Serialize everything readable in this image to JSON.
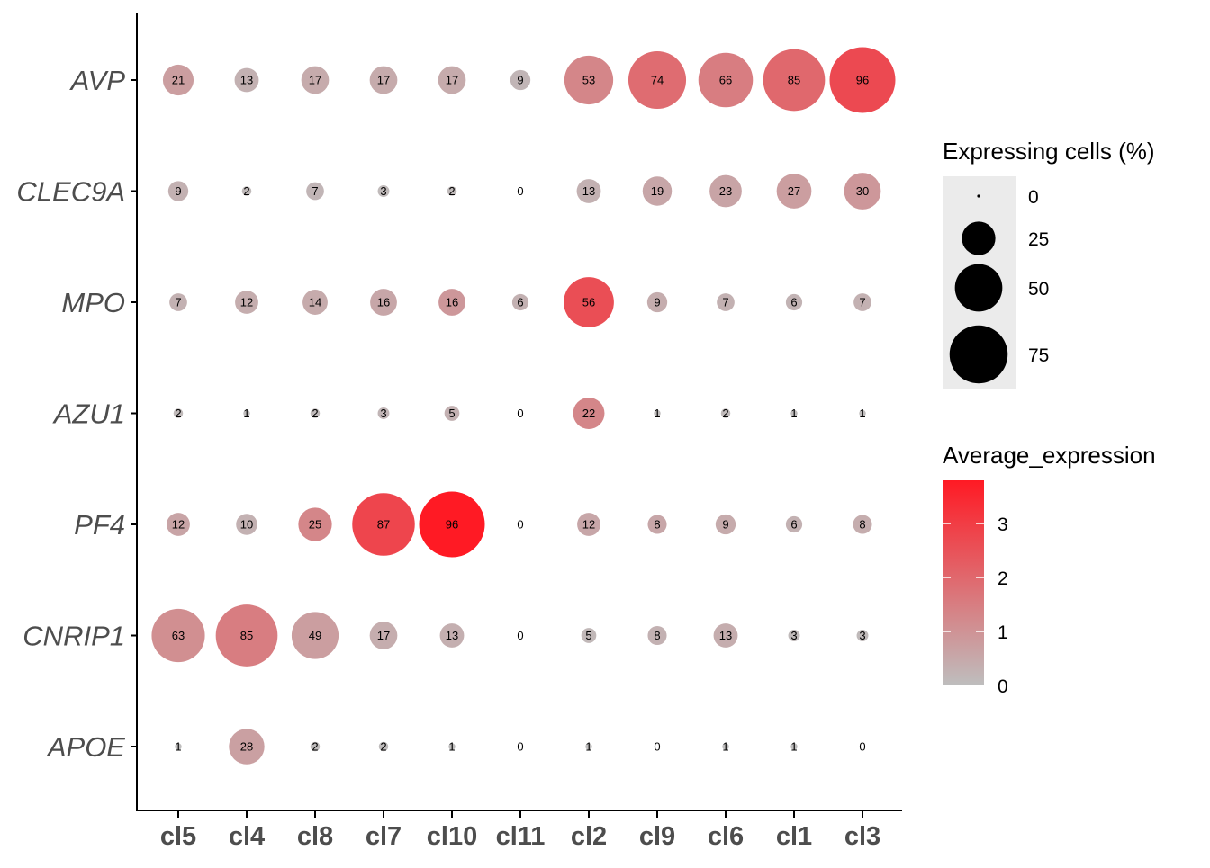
{
  "chart_data": {
    "type": "dotplot",
    "title": "",
    "xlabel": "",
    "ylabel": "",
    "categories": [
      "cl5",
      "cl4",
      "cl8",
      "cl7",
      "cl10",
      "cl11",
      "cl2",
      "cl9",
      "cl6",
      "cl1",
      "cl3"
    ],
    "genes": [
      "AVP",
      "CLEC9A",
      "MPO",
      "AZU1",
      "PF4",
      "CNRIP1",
      "APOE"
    ],
    "pct": {
      "AVP": [
        21,
        13,
        17,
        17,
        17,
        9,
        53,
        74,
        66,
        85,
        96
      ],
      "CLEC9A": [
        9,
        2,
        7,
        3,
        2,
        0,
        13,
        19,
        23,
        27,
        30
      ],
      "MPO": [
        7,
        12,
        14,
        16,
        16,
        6,
        56,
        9,
        7,
        6,
        7
      ],
      "AZU1": [
        2,
        1,
        2,
        3,
        5,
        0,
        22,
        1,
        2,
        1,
        1
      ],
      "PF4": [
        12,
        10,
        25,
        87,
        96,
        0,
        12,
        8,
        9,
        6,
        8
      ],
      "CNRIP1": [
        63,
        85,
        49,
        17,
        13,
        0,
        5,
        8,
        13,
        3,
        3
      ],
      "APOE": [
        1,
        28,
        2,
        2,
        1,
        0,
        1,
        0,
        1,
        1,
        0
      ]
    },
    "avg_expression": {
      "AVP": [
        0.75,
        0.3,
        0.45,
        0.45,
        0.45,
        0.2,
        1.3,
        1.9,
        1.5,
        2.0,
        2.7
      ],
      "CLEC9A": [
        0.3,
        0.1,
        0.2,
        0.1,
        0.1,
        0.0,
        0.3,
        0.55,
        0.6,
        0.75,
        0.9
      ],
      "MPO": [
        0.3,
        0.4,
        0.45,
        0.55,
        0.9,
        0.3,
        2.6,
        0.4,
        0.3,
        0.25,
        0.3
      ],
      "AZU1": [
        0.1,
        0.05,
        0.1,
        0.2,
        0.3,
        0.0,
        1.3,
        0.05,
        0.1,
        0.05,
        0.05
      ],
      "PF4": [
        0.6,
        0.3,
        1.3,
        2.8,
        3.8,
        0.0,
        0.55,
        0.55,
        0.45,
        0.3,
        0.4
      ],
      "CNRIP1": [
        1.1,
        1.5,
        0.75,
        0.4,
        0.35,
        0.0,
        0.15,
        0.3,
        0.4,
        0.1,
        0.1
      ],
      "APOE": [
        0.02,
        0.7,
        0.05,
        0.05,
        0.02,
        0.0,
        0.02,
        0.0,
        0.02,
        0.02,
        0.0
      ]
    },
    "size_legend": {
      "title": "Expressing cells (%)",
      "values": [
        0,
        25,
        50,
        75
      ]
    },
    "color_legend": {
      "title": "Average_expression",
      "ticks": [
        0,
        1,
        2,
        3
      ],
      "range": [
        0,
        3.8
      ],
      "low_color": "#BEBEBE",
      "high_color": "#FF1A24"
    },
    "max_pct": 96
  }
}
